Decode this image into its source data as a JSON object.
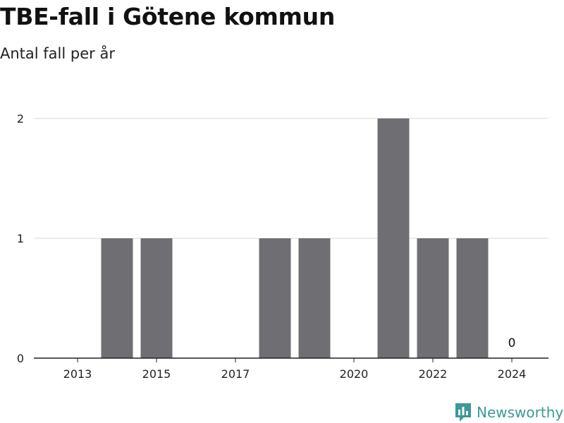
{
  "header": {
    "title": "TBE-fall i Götene kommun",
    "subtitle": "Antal fall per år"
  },
  "brand": {
    "name": "Newsworthy",
    "icon": "newsworthy-logo-icon",
    "color": "#3a9a96"
  },
  "chart_data": {
    "type": "bar",
    "categories": [
      "2013",
      "2014",
      "2015",
      "2016",
      "2017",
      "2018",
      "2019",
      "2020",
      "2021",
      "2022",
      "2023",
      "2024"
    ],
    "values": [
      0,
      1,
      1,
      0,
      0,
      1,
      1,
      0,
      2,
      1,
      1,
      0
    ],
    "x_tick_labels": [
      "2013",
      "2015",
      "2017",
      "2020",
      "2022",
      "2024"
    ],
    "y_ticks": [
      0,
      1,
      2
    ],
    "ylim": [
      0,
      2
    ],
    "data_labels": [
      {
        "category": "2024",
        "text": "0"
      }
    ],
    "bar_color": "#6f6e73",
    "grid": true,
    "legend": "none"
  }
}
